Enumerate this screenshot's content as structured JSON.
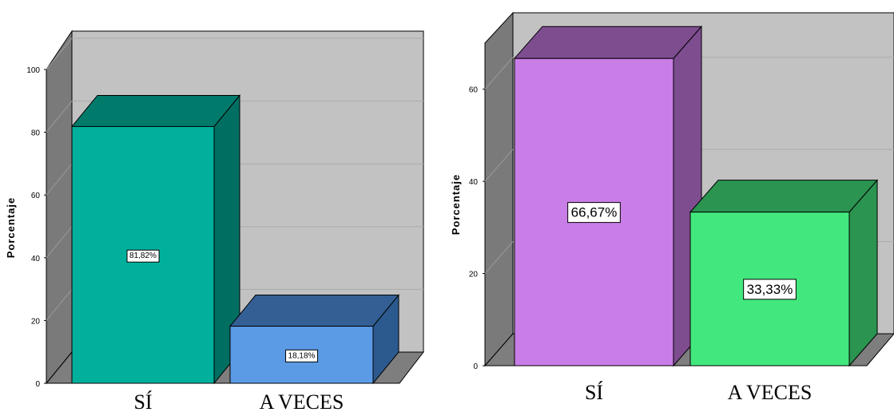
{
  "chart_data": [
    {
      "type": "bar",
      "categories": [
        "SÍ",
        "A VECES"
      ],
      "values": [
        81.82,
        18.18
      ],
      "data_labels": [
        "81,82%",
        "18,18%"
      ],
      "ylabel": "Porcentaje",
      "yticks": [
        "0",
        "20",
        "40",
        "60",
        "80",
        "100"
      ],
      "ylim": [
        0,
        100
      ],
      "grid": true,
      "colors": {
        "bars": [
          {
            "front": "#00b09c",
            "top": "#007a6b",
            "side": "#006e60"
          },
          {
            "front": "#5b9be6",
            "top": "#345f95",
            "side": "#2c5a8f"
          }
        ],
        "wall": "#c2c2c2",
        "floor": "#7e7e7e"
      }
    },
    {
      "type": "bar",
      "categories": [
        "SÍ",
        "A VECES"
      ],
      "values": [
        66.67,
        33.33
      ],
      "data_labels": [
        "66,67%",
        "33,33%"
      ],
      "ylabel": "Porcentaje",
      "yticks": [
        "0",
        "20",
        "40",
        "60"
      ],
      "ylim": [
        0,
        70
      ],
      "grid": true,
      "colors": {
        "bars": [
          {
            "front": "#c97de6",
            "top": "#7e4d90",
            "side": "#7e4d90"
          },
          {
            "front": "#42e87d",
            "top": "#2a9450",
            "side": "#2a9450"
          }
        ],
        "wall": "#c2c2c2",
        "floor": "#7e7e7e"
      }
    }
  ]
}
